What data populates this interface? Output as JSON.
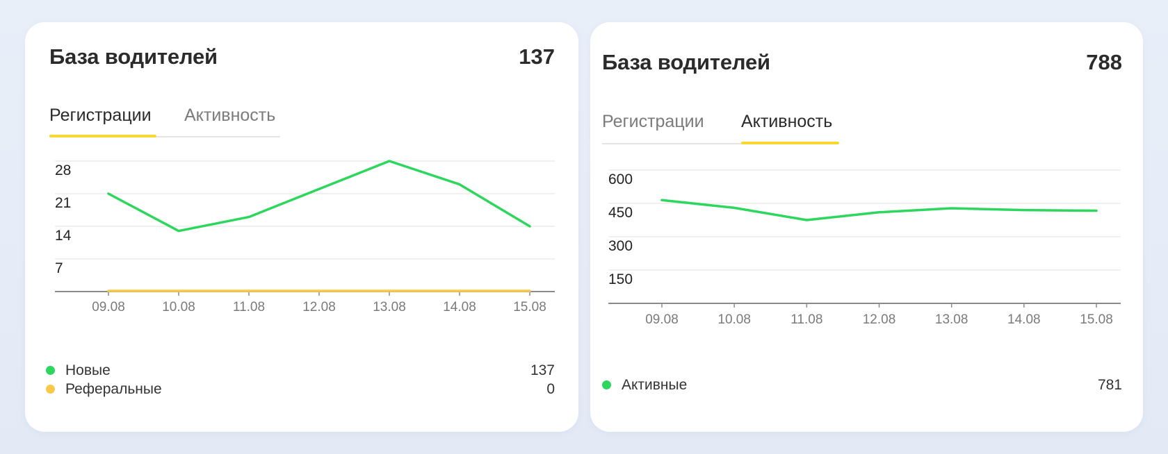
{
  "colors": {
    "green": "#2dd65d",
    "yellow": "#fbc94a",
    "tab_underline": "#f8d732",
    "grid": "#e6e6e6",
    "axis": "#8a8a8a"
  },
  "cards": [
    {
      "title": "База водителей",
      "total": "137",
      "tabs": [
        {
          "label": "Регистрации",
          "active": true
        },
        {
          "label": "Активность",
          "active": false
        }
      ],
      "legend": [
        {
          "label": "Новые",
          "value": "137",
          "color": "#2dd65d"
        },
        {
          "label": "Реферальные",
          "value": "0",
          "color": "#fbc94a"
        }
      ]
    },
    {
      "title": "База водителей",
      "total": "788",
      "tabs": [
        {
          "label": "Регистрации",
          "active": false
        },
        {
          "label": "Активность",
          "active": true
        }
      ],
      "legend": [
        {
          "label": "Активные",
          "value": "781",
          "color": "#2dd65d"
        }
      ]
    }
  ],
  "chart_data": [
    {
      "type": "line",
      "categories": [
        "09.08",
        "10.08",
        "11.08",
        "12.08",
        "13.08",
        "14.08",
        "15.08"
      ],
      "y_ticks": [
        "7",
        "14",
        "21",
        "28"
      ],
      "ylim": [
        0,
        28
      ],
      "grid": true,
      "series": [
        {
          "name": "Новые",
          "color": "#2dd65d",
          "values": [
            21,
            13,
            16,
            22,
            28,
            23,
            14
          ]
        },
        {
          "name": "Реферальные",
          "color": "#fbc94a",
          "values": [
            0,
            0,
            0,
            0,
            0,
            0,
            0
          ]
        }
      ]
    },
    {
      "type": "line",
      "categories": [
        "09.08",
        "10.08",
        "11.08",
        "12.08",
        "13.08",
        "14.08",
        "15.08"
      ],
      "y_ticks": [
        "150",
        "300",
        "450",
        "600"
      ],
      "ylim": [
        0,
        600
      ],
      "grid": true,
      "series": [
        {
          "name": "Активные",
          "color": "#2dd65d",
          "values": [
            465,
            430,
            375,
            410,
            428,
            420,
            417
          ]
        }
      ]
    }
  ]
}
